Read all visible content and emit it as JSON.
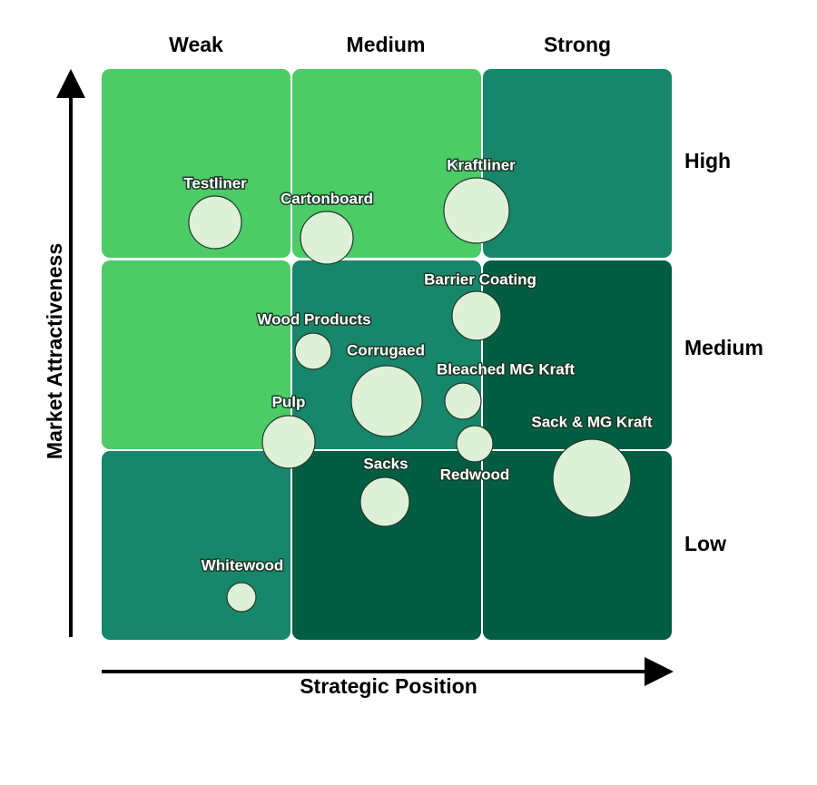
{
  "columns": [
    "Weak",
    "Medium",
    "Strong"
  ],
  "rows": [
    "High",
    "Medium",
    "Low"
  ],
  "x_axis_title": "Strategic Position",
  "y_axis_title": "Market Attractiveness",
  "bubbles": [
    {
      "label": "Testliner"
    },
    {
      "label": "Cartonboard"
    },
    {
      "label": "Kraftliner"
    },
    {
      "label": "Barrier Coating"
    },
    {
      "label": "Wood Products"
    },
    {
      "label": "Corrugaed"
    },
    {
      "label": "Bleached MG Kraft"
    },
    {
      "label": "Pulp"
    },
    {
      "label": "Redwood"
    },
    {
      "label": "Sacks"
    },
    {
      "label": "Sack & MG Kraft"
    },
    {
      "label": "Whitewood"
    }
  ]
}
